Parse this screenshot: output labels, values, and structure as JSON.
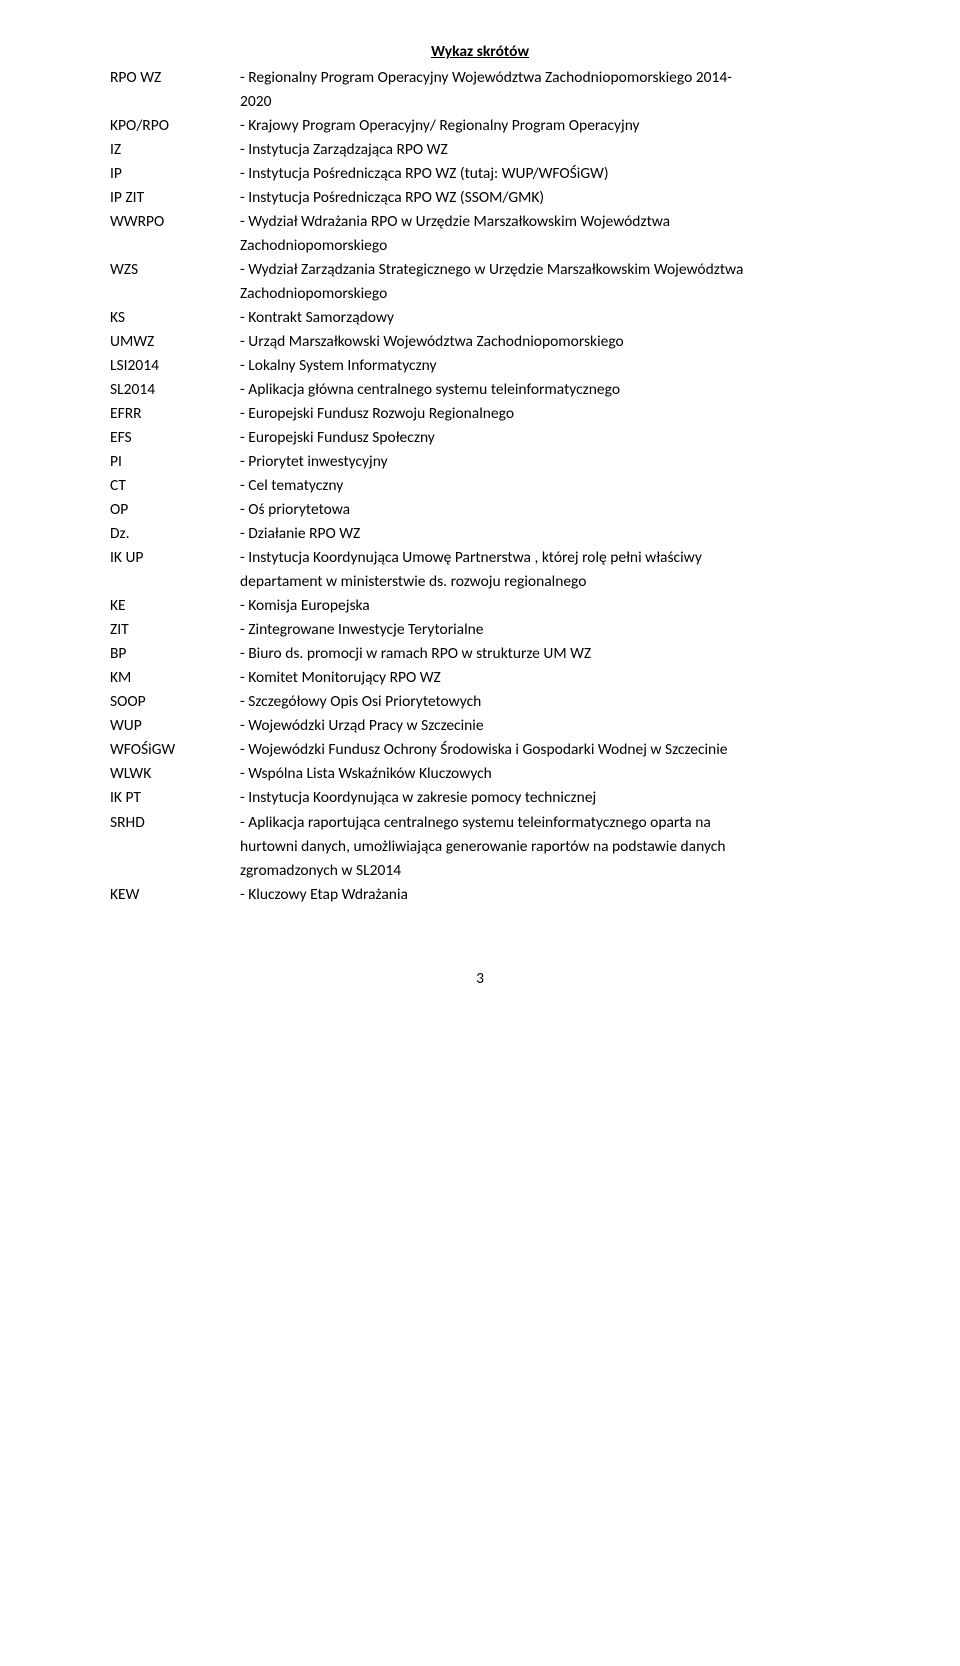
{
  "title": "Wykaz skrótów",
  "entries": [
    {
      "abbr": "RPO WZ",
      "lines": [
        "- Regionalny Program Operacyjny Województwa Zachodniopomorskiego 2014-",
        "2020"
      ]
    },
    {
      "abbr": "KPO/RPO",
      "lines": [
        "- Krajowy Program Operacyjny/ Regionalny Program Operacyjny"
      ]
    },
    {
      "abbr": "IZ",
      "lines": [
        "- Instytucja Zarządzająca RPO WZ"
      ]
    },
    {
      "abbr": "IP",
      "lines": [
        "- Instytucja Pośrednicząca RPO WZ (tutaj: WUP/WFOŚiGW)"
      ]
    },
    {
      "abbr": "IP ZIT",
      "lines": [
        "- Instytucja Pośrednicząca RPO WZ (SSOM/GMK)"
      ]
    },
    {
      "abbr": "WWRPO",
      "lines": [
        "- Wydział Wdrażania RPO w Urzędzie Marszałkowskim Województwa",
        "Zachodniopomorskiego"
      ]
    },
    {
      "abbr": "WZS",
      "lines": [
        "- Wydział Zarządzania Strategicznego w Urzędzie Marszałkowskim Województwa",
        "Zachodniopomorskiego"
      ]
    },
    {
      "abbr": "KS",
      "lines": [
        "- Kontrakt Samorządowy"
      ]
    },
    {
      "abbr": "UMWZ",
      "lines": [
        "- Urząd Marszałkowski Województwa Zachodniopomorskiego"
      ]
    },
    {
      "abbr": "LSI2014",
      "lines": [
        "- Lokalny System Informatyczny"
      ]
    },
    {
      "abbr": "SL2014",
      "lines": [
        "- Aplikacja główna centralnego systemu teleinformatycznego"
      ]
    },
    {
      "abbr": "EFRR",
      "lines": [
        "- Europejski Fundusz Rozwoju Regionalnego"
      ]
    },
    {
      "abbr": "EFS",
      "lines": [
        "- Europejski Fundusz Społeczny"
      ]
    },
    {
      "abbr": "PI",
      "lines": [
        "- Priorytet inwestycyjny"
      ]
    },
    {
      "abbr": "CT",
      "lines": [
        "- Cel tematyczny"
      ]
    },
    {
      "abbr": "OP",
      "lines": [
        "- Oś priorytetowa"
      ]
    },
    {
      "abbr": "Dz.",
      "lines": [
        "- Działanie RPO WZ"
      ]
    },
    {
      "abbr": "IK UP",
      "lines": [
        "- Instytucja Koordynująca Umowę Partnerstwa , której rolę pełni właściwy",
        "departament w ministerstwie ds. rozwoju regionalnego"
      ]
    },
    {
      "abbr": "KE",
      "lines": [
        "- Komisja Europejska"
      ]
    },
    {
      "abbr": "ZIT",
      "lines": [
        "- Zintegrowane Inwestycje Terytorialne"
      ]
    },
    {
      "abbr": "BP",
      "lines": [
        "- Biuro ds. promocji w ramach RPO w strukturze UM WZ"
      ]
    },
    {
      "abbr": "KM",
      "lines": [
        "- Komitet Monitorujący RPO WZ"
      ]
    },
    {
      "abbr": "SOOP",
      "lines": [
        "- Szczegółowy Opis Osi Priorytetowych"
      ]
    },
    {
      "abbr": "WUP",
      "lines": [
        "- Wojewódzki Urząd Pracy w Szczecinie"
      ]
    },
    {
      "abbr": "WFOŚiGW",
      "lines": [
        "- Wojewódzki Fundusz Ochrony Środowiska i Gospodarki Wodnej w Szczecinie"
      ]
    },
    {
      "abbr": "WLWK",
      "lines": [
        "- Wspólna Lista Wskaźników Kluczowych"
      ]
    },
    {
      "abbr": "IK PT",
      "lines": [
        "- Instytucja Koordynująca w zakresie pomocy technicznej"
      ]
    },
    {
      "abbr": "SRHD",
      "lines": [
        "- Aplikacja raportująca centralnego systemu teleinformatycznego oparta na",
        "hurtowni danych, umożliwiająca generowanie raportów na podstawie danych",
        "zgromadzonych w SL2014"
      ]
    },
    {
      "abbr": "KEW",
      "lines": [
        "- Kluczowy Etap Wdrażania"
      ]
    }
  ],
  "page_number": "3"
}
